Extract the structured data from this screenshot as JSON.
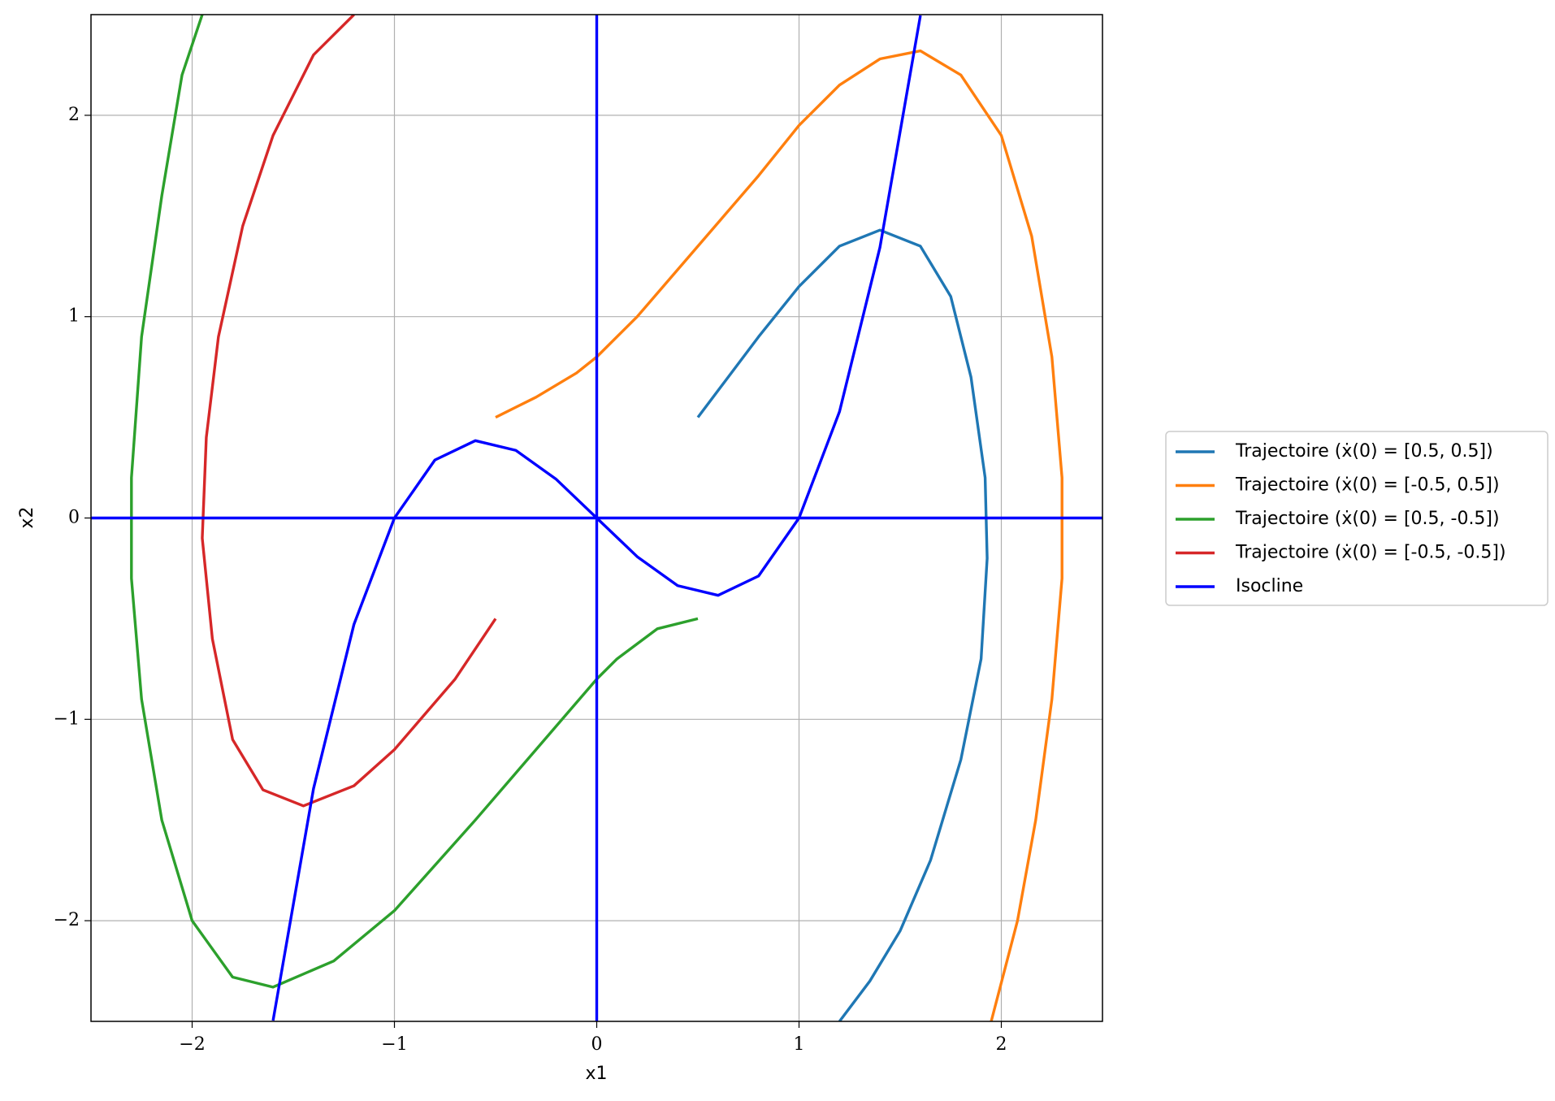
{
  "chart_data": {
    "type": "line",
    "x_label": "x1",
    "y_label": "x2",
    "xlim": [
      -2.5,
      2.5
    ],
    "ylim": [
      -2.5,
      2.5
    ],
    "xticks": [
      {
        "value": -2,
        "label": "−2"
      },
      {
        "value": -1,
        "label": "−1"
      },
      0,
      1,
      2
    ],
    "yticks": [
      {
        "value": -2,
        "label": "−2"
      },
      {
        "value": -1,
        "label": "−1"
      },
      0,
      1,
      2
    ],
    "grid": true,
    "legend": "outside right",
    "series": [
      {
        "name": "Trajectoire (ẋ(0) = [0.5, 0.5])",
        "color": "#1f77b4",
        "x": [
          0.5,
          0.8,
          1.0,
          1.2,
          1.4,
          1.6,
          1.75,
          1.85,
          1.92,
          1.93,
          1.9,
          1.8,
          1.65,
          1.5,
          1.35,
          1.2
        ],
        "y": [
          0.5,
          0.9,
          1.15,
          1.35,
          1.43,
          1.35,
          1.1,
          0.7,
          0.2,
          -0.2,
          -0.7,
          -1.2,
          -1.7,
          -2.05,
          -2.3,
          -2.5
        ]
      },
      {
        "name": "Trajectoire (ẋ(0) = [-0.5, 0.5])",
        "color": "#ff7f0e",
        "x": [
          -0.5,
          -0.3,
          -0.1,
          0,
          0.2,
          0.5,
          0.8,
          1.0,
          1.2,
          1.4,
          1.6,
          1.8,
          2.0,
          2.15,
          2.25,
          2.3,
          2.3,
          2.25,
          2.17,
          2.08,
          1.95
        ],
        "y": [
          0.5,
          0.6,
          0.72,
          0.8,
          1.0,
          1.35,
          1.7,
          1.95,
          2.15,
          2.28,
          2.32,
          2.2,
          1.9,
          1.4,
          0.8,
          0.2,
          -0.3,
          -0.9,
          -1.5,
          -2.0,
          -2.5
        ]
      },
      {
        "name": "Trajectoire (ẋ(0) = [0.5, -0.5])",
        "color": "#2ca02c",
        "x": [
          0.5,
          0.3,
          0.1,
          0,
          -0.3,
          -0.6,
          -1.0,
          -1.3,
          -1.6,
          -1.8,
          -2.0,
          -2.15,
          -2.25,
          -2.3,
          -2.3,
          -2.25,
          -2.15,
          -2.05,
          -1.95
        ],
        "y": [
          -0.5,
          -0.55,
          -0.7,
          -0.8,
          -1.15,
          -1.5,
          -1.95,
          -2.2,
          -2.33,
          -2.28,
          -2.0,
          -1.5,
          -0.9,
          -0.3,
          0.2,
          0.9,
          1.6,
          2.2,
          2.5
        ]
      },
      {
        "name": "Trajectoire (ẋ(0) = [-0.5, -0.5])",
        "color": "#d62728",
        "x": [
          -0.5,
          -0.7,
          -1.0,
          -1.2,
          -1.45,
          -1.65,
          -1.8,
          -1.9,
          -1.95,
          -1.93,
          -1.87,
          -1.75,
          -1.6,
          -1.4,
          -1.2
        ],
        "y": [
          -0.5,
          -0.8,
          -1.15,
          -1.33,
          -1.43,
          -1.35,
          -1.1,
          -0.6,
          -0.1,
          0.4,
          0.9,
          1.45,
          1.9,
          2.3,
          2.5
        ]
      },
      {
        "name": "Isocline",
        "color": "#0000ff",
        "x": [
          -1.6,
          -1.4,
          -1.2,
          -1.0,
          -0.8,
          -0.6,
          -0.4,
          -0.2,
          0,
          0.2,
          0.4,
          0.6,
          0.8,
          1.0,
          1.2,
          1.4,
          1.6,
          null,
          -2.5,
          2.5,
          null,
          0,
          0
        ],
        "y": [
          -2.496,
          -1.344,
          -0.528,
          0,
          0.288,
          0.384,
          0.336,
          0.192,
          0,
          -0.192,
          -0.336,
          -0.384,
          -0.288,
          0,
          0.528,
          1.344,
          2.496,
          null,
          0,
          0,
          null,
          -2.5,
          2.5
        ]
      }
    ]
  }
}
